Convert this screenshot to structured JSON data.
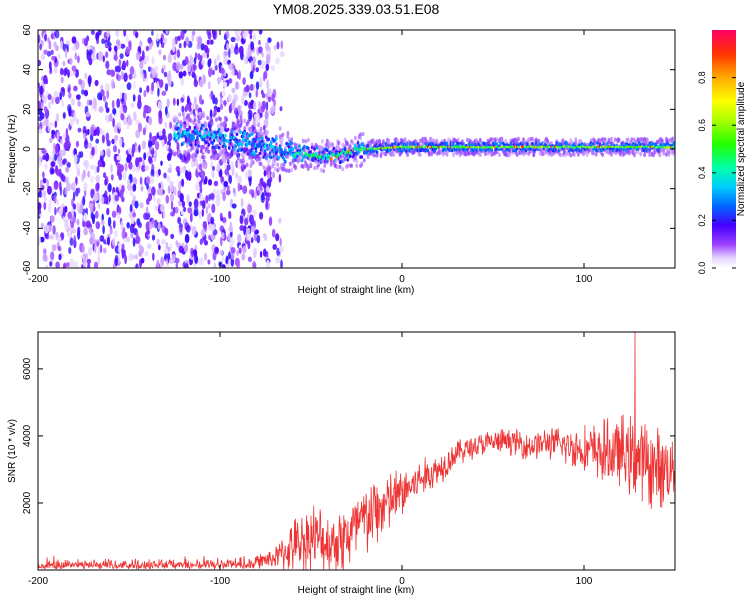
{
  "figure_title": "YM08.2025.339.03.51.E08",
  "chart_data": [
    {
      "type": "heatmap",
      "title": "YM08.2025.339.03.51.E08",
      "xlabel": "Height of straight line (km)",
      "ylabel": "Frequency (Hz)",
      "xlim": [
        -200,
        150
      ],
      "ylim": [
        -60,
        60
      ],
      "xticks": [
        -200,
        -100,
        0,
        100
      ],
      "yticks": [
        -60,
        -40,
        -20,
        0,
        20,
        40,
        60
      ],
      "colorbar": {
        "label": "Normalized spectral amplitude",
        "range": [
          0,
          1
        ],
        "ticks": [
          0.0,
          0.2,
          0.4,
          0.6,
          0.8
        ]
      },
      "features": {
        "noise_region_x": [
          -200,
          -70
        ],
        "signal_start_x": -125,
        "signal_center_freq_hz": [
          [
            -125,
            8
          ],
          [
            -100,
            6
          ],
          [
            -80,
            2
          ],
          [
            -60,
            -2
          ],
          [
            -40,
            -4
          ],
          [
            -30,
            -2
          ],
          [
            -20,
            0
          ],
          [
            0,
            1
          ],
          [
            50,
            1
          ],
          [
            100,
            1
          ],
          [
            150,
            1
          ]
        ],
        "peak_amplitude_from_x": 0,
        "peak_amplitude": 0.95
      }
    },
    {
      "type": "line",
      "title": "",
      "xlabel": "Height of straight line (km)",
      "ylabel": "SNR (10 * v/v)",
      "xlim": [
        -200,
        150
      ],
      "ylim": [
        0,
        7100
      ],
      "xticks": [
        -200,
        -100,
        0,
        100
      ],
      "yticks": [
        2000,
        4000,
        6000
      ],
      "color": "#ee3333",
      "series": [
        {
          "name": "SNR",
          "envelope_x": [
            -200,
            -150,
            -100,
            -80,
            -70,
            -60,
            -50,
            -40,
            -30,
            -20,
            -10,
            0,
            10,
            20,
            30,
            40,
            50,
            60,
            70,
            80,
            90,
            100,
            110,
            120,
            130,
            140,
            150
          ],
          "baseline": [
            180,
            180,
            190,
            250,
            350,
            700,
            1000,
            800,
            1000,
            1500,
            1900,
            2300,
            2700,
            3000,
            3500,
            3700,
            3800,
            3850,
            3700,
            3800,
            3700,
            3600,
            3500,
            3500,
            3300,
            3000,
            3100
          ],
          "noise_amplitude": [
            180,
            180,
            200,
            300,
            500,
            1200,
            1700,
            1400,
            1800,
            1800,
            1600,
            1200,
            900,
            800,
            600,
            600,
            600,
            600,
            700,
            700,
            900,
            1100,
            1500,
            1700,
            2000,
            1900,
            1600
          ],
          "max_value": 7100,
          "max_at_x": 128
        }
      ]
    }
  ]
}
